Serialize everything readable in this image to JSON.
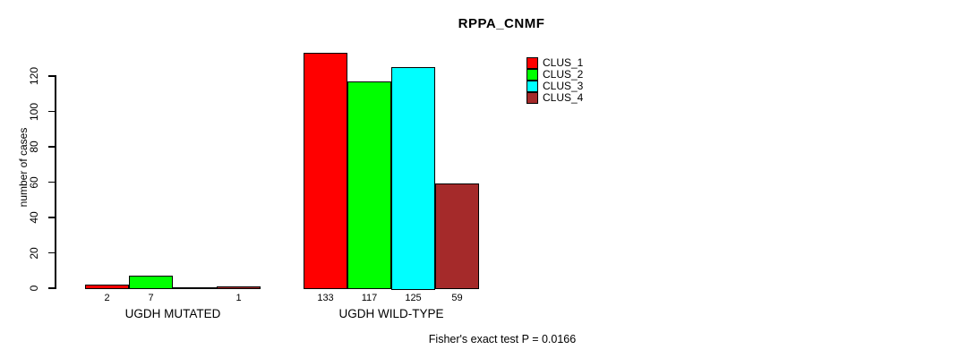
{
  "title": "RPPA_CNMF",
  "y_axis_label": "number of cases",
  "footer": "Fisher's exact test P = 0.0166",
  "chart_data": {
    "type": "bar",
    "title": "RPPA_CNMF",
    "xlabel": "",
    "ylabel": "number of cases",
    "annotation": "Fisher's exact test P = 0.0166",
    "grid": false,
    "legend_position": "right",
    "ylim": [
      0,
      135
    ],
    "yticks": [
      0,
      20,
      40,
      60,
      80,
      100,
      120
    ],
    "series_names": [
      "CLUS_1",
      "CLUS_2",
      "CLUS_3",
      "CLUS_4"
    ],
    "series_colors": [
      "#ff0000",
      "#00ff00",
      "#00ffff",
      "#a52a2a"
    ],
    "groups": [
      {
        "label": "UGDH MUTATED",
        "values": [
          2,
          7,
          0,
          1
        ],
        "bar_labels": [
          "2",
          "7",
          "",
          "1"
        ]
      },
      {
        "label": "UGDH WILD-TYPE",
        "values": [
          133,
          117,
          125,
          59
        ],
        "bar_labels": [
          "133",
          "117",
          "125",
          "59"
        ]
      }
    ]
  }
}
